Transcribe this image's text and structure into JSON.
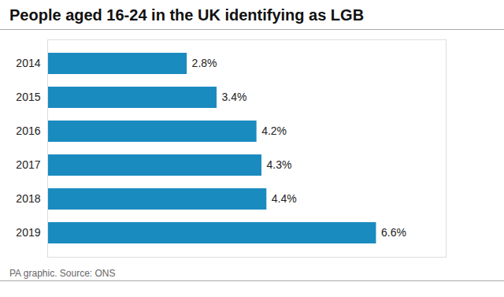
{
  "chart_data": {
    "type": "bar",
    "orientation": "horizontal",
    "title": "People aged 16-24 in the UK identifying as LGB",
    "footnote": "PA graphic. Source: ONS",
    "categories": [
      "2014",
      "2015",
      "2016",
      "2017",
      "2018",
      "2019"
    ],
    "values": [
      2.8,
      3.4,
      4.2,
      4.3,
      4.4,
      6.6
    ],
    "value_labels": [
      "2.8%",
      "3.4%",
      "4.2%",
      "4.3%",
      "4.4%",
      "6.6%"
    ],
    "data_labels": true,
    "color": "#1a8bbf",
    "xlim": [
      0,
      8.0
    ],
    "tick_labels": "y"
  }
}
